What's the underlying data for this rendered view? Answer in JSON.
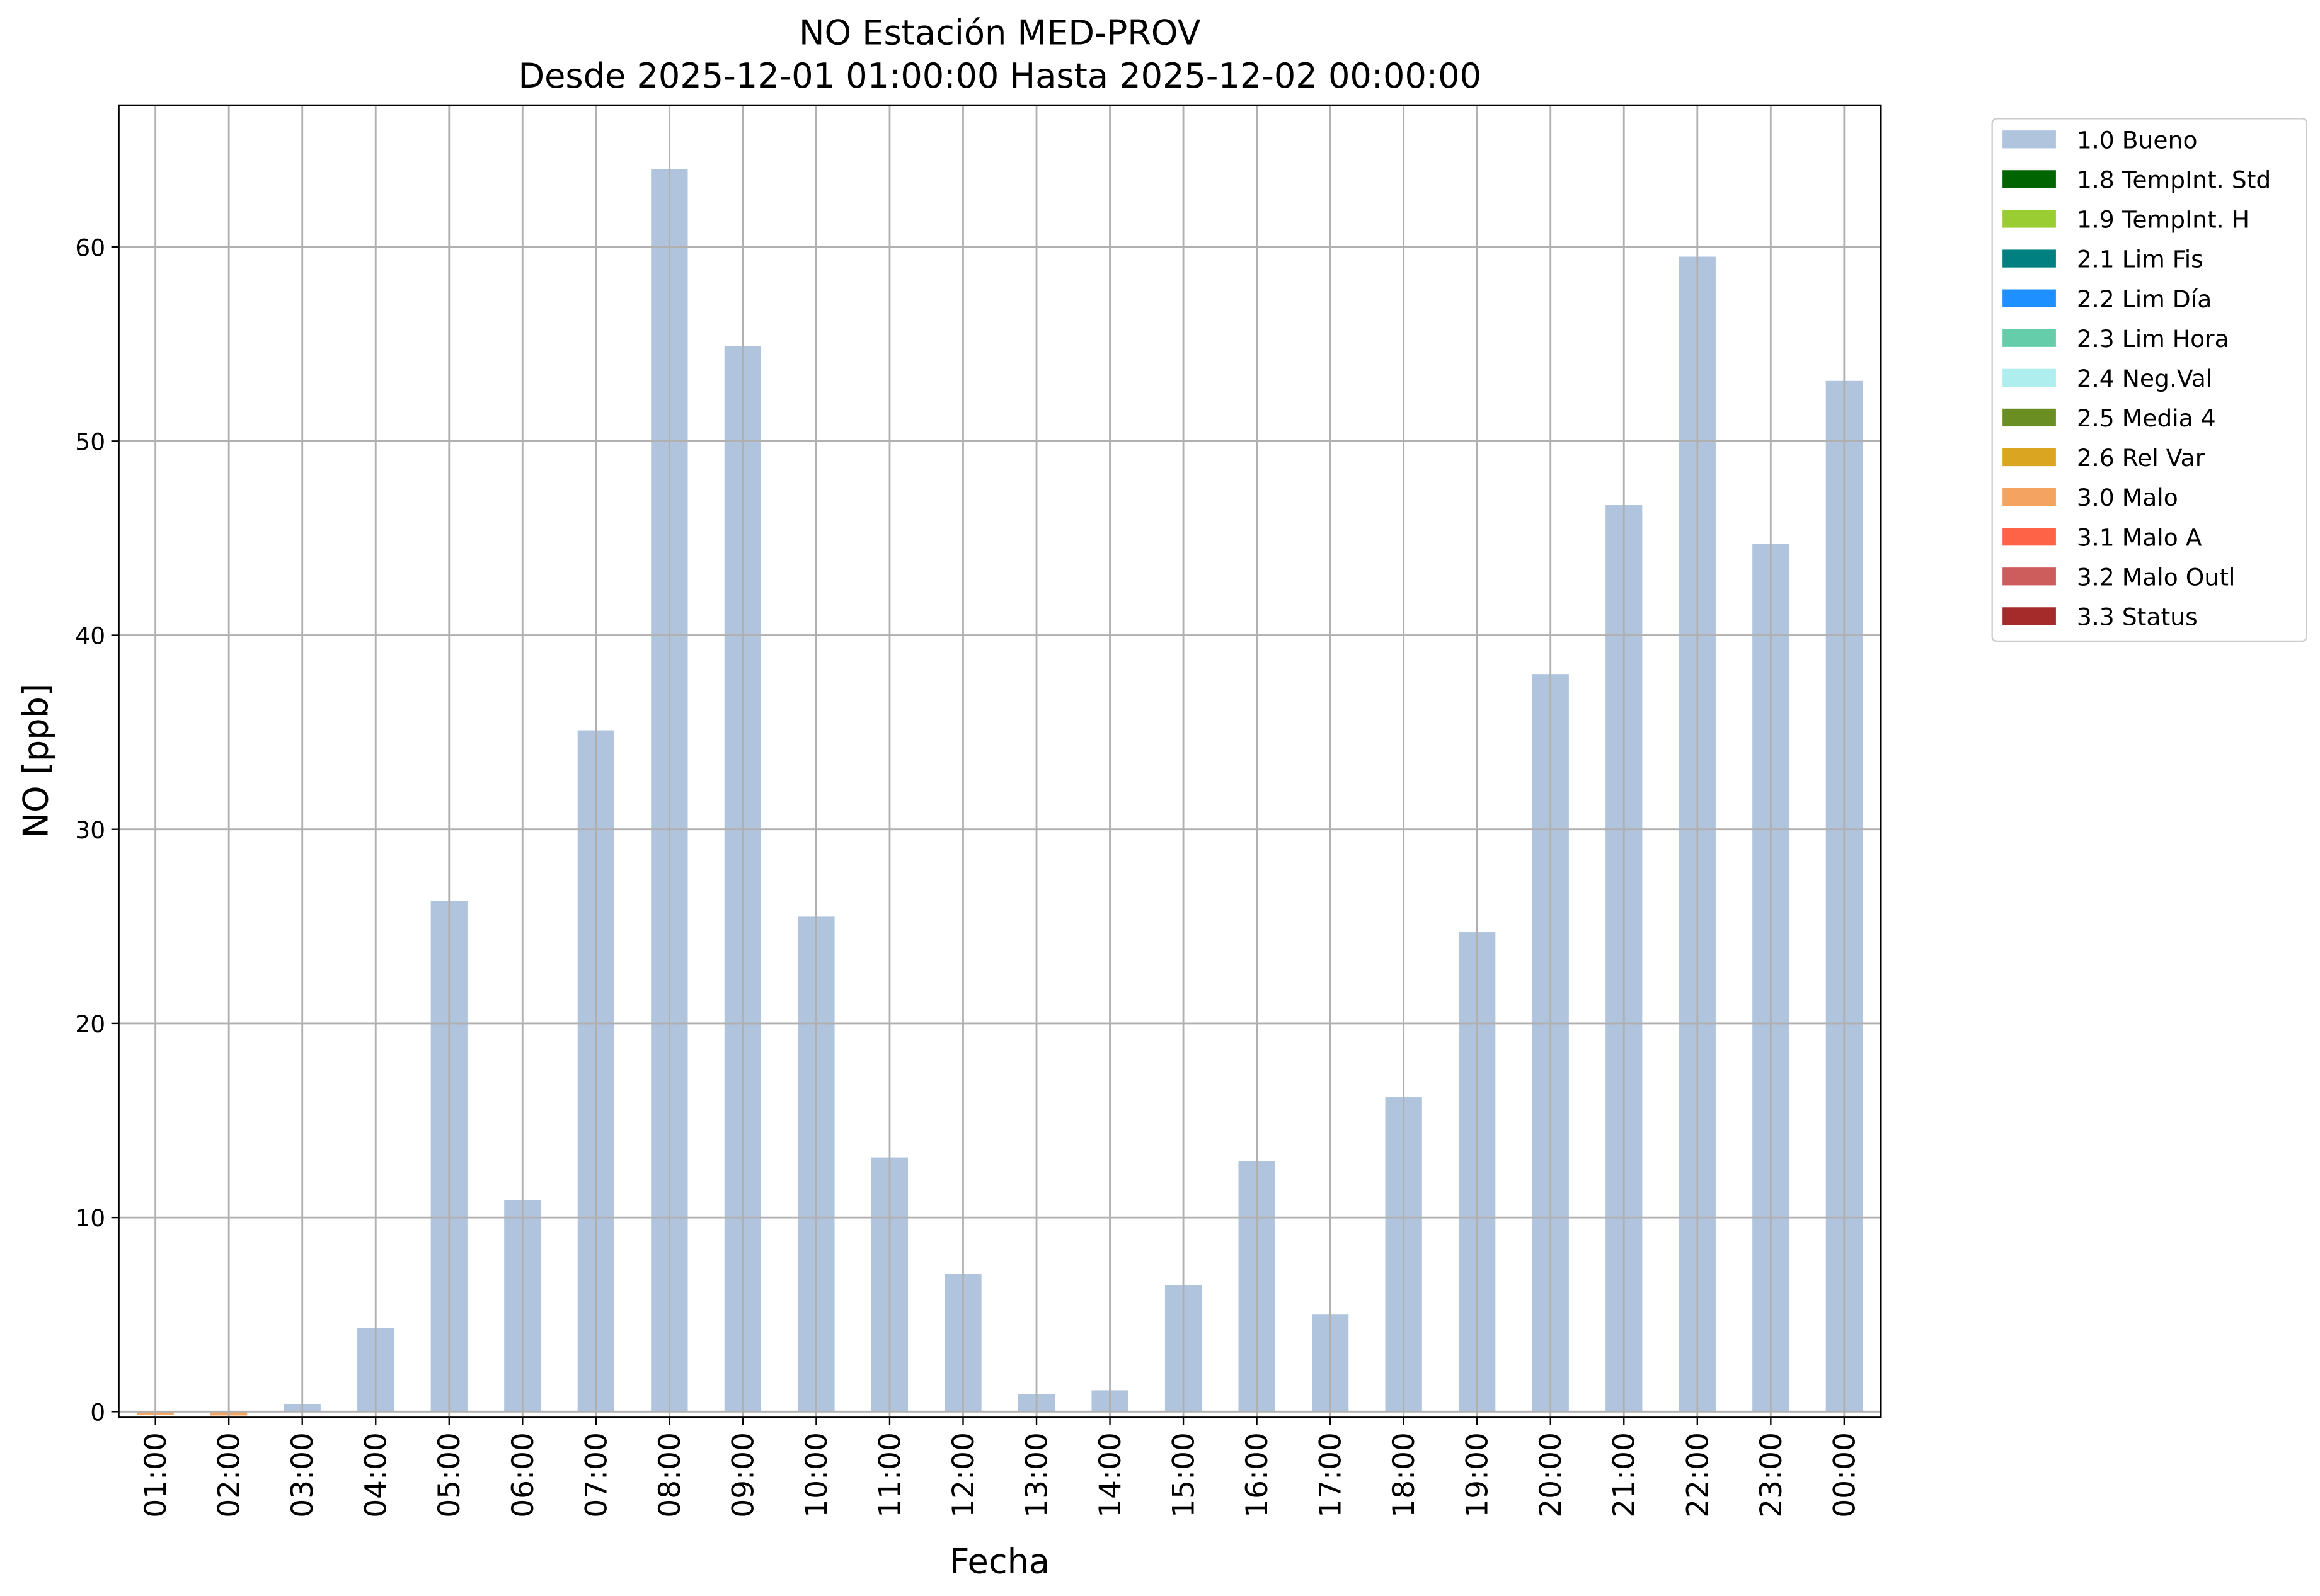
{
  "chart_data": {
    "type": "bar",
    "stacked": true,
    "title": "NO Estación MED-PROV",
    "subtitle": "Desde 2025-12-01 01:00:00 Hasta 2025-12-02 00:00:00",
    "x_label": "Fecha",
    "y_label": "NO [ppb]",
    "categories": [
      "01:00",
      "02:00",
      "03:00",
      "04:00",
      "05:00",
      "06:00",
      "07:00",
      "08:00",
      "09:00",
      "10:00",
      "11:00",
      "12:00",
      "13:00",
      "14:00",
      "15:00",
      "16:00",
      "17:00",
      "18:00",
      "19:00",
      "20:00",
      "21:00",
      "22:00",
      "23:00",
      "00:00"
    ],
    "series": [
      {
        "name": "1.0 Bueno",
        "color": "#b0c4de",
        "values": [
          null,
          null,
          0.4,
          4.3,
          26.3,
          10.9,
          35.1,
          64.0,
          54.9,
          25.5,
          13.1,
          7.1,
          0.9,
          1.1,
          6.5,
          12.9,
          5.0,
          16.2,
          24.7,
          38.0,
          46.7,
          59.5,
          44.7,
          53.1
        ]
      },
      {
        "name": "1.8 TempInt. Std",
        "color": "#006400",
        "values": [
          null,
          null,
          null,
          null,
          null,
          null,
          null,
          null,
          null,
          null,
          null,
          null,
          null,
          null,
          null,
          null,
          null,
          null,
          null,
          null,
          null,
          null,
          null,
          null
        ]
      },
      {
        "name": "1.9 TempInt. H",
        "color": "#9acd32",
        "values": [
          null,
          null,
          null,
          null,
          null,
          null,
          null,
          null,
          null,
          null,
          null,
          null,
          null,
          null,
          null,
          null,
          null,
          null,
          null,
          null,
          null,
          null,
          null,
          null
        ]
      },
      {
        "name": "2.1 Lim Fis",
        "color": "#008080",
        "values": [
          null,
          null,
          null,
          null,
          null,
          null,
          null,
          null,
          null,
          null,
          null,
          null,
          null,
          null,
          null,
          null,
          null,
          null,
          null,
          null,
          null,
          null,
          null,
          null
        ]
      },
      {
        "name": "2.2 Lim Día",
        "color": "#1e90ff",
        "values": [
          null,
          null,
          null,
          null,
          null,
          null,
          null,
          null,
          null,
          null,
          null,
          null,
          null,
          null,
          null,
          null,
          null,
          null,
          null,
          null,
          null,
          null,
          null,
          null
        ]
      },
      {
        "name": "2.3 Lim Hora",
        "color": "#66cdaa",
        "values": [
          null,
          null,
          null,
          null,
          null,
          null,
          null,
          null,
          null,
          null,
          null,
          null,
          null,
          null,
          null,
          null,
          null,
          null,
          null,
          null,
          null,
          null,
          null,
          null
        ]
      },
      {
        "name": "2.4 Neg.Val",
        "color": "#afeeee",
        "values": [
          null,
          null,
          null,
          null,
          null,
          null,
          null,
          null,
          null,
          null,
          null,
          null,
          null,
          null,
          null,
          null,
          null,
          null,
          null,
          null,
          null,
          null,
          null,
          null
        ]
      },
      {
        "name": "2.5 Media 4",
        "color": "#6b8e23",
        "values": [
          null,
          null,
          null,
          null,
          null,
          null,
          null,
          null,
          null,
          null,
          null,
          null,
          null,
          null,
          null,
          null,
          null,
          null,
          null,
          null,
          null,
          null,
          null,
          null
        ]
      },
      {
        "name": "2.6 Rel Var",
        "color": "#daa520",
        "values": [
          null,
          null,
          null,
          null,
          null,
          null,
          null,
          null,
          null,
          null,
          null,
          null,
          null,
          null,
          null,
          null,
          null,
          null,
          null,
          null,
          null,
          null,
          null,
          null
        ]
      },
      {
        "name": "3.0 Malo",
        "color": "#f4a460",
        "values": [
          -0.15,
          -0.2,
          null,
          null,
          null,
          null,
          null,
          null,
          null,
          null,
          null,
          null,
          null,
          null,
          null,
          null,
          null,
          null,
          null,
          null,
          null,
          null,
          null,
          null
        ]
      },
      {
        "name": "3.1 Malo A",
        "color": "#ff6347",
        "values": [
          null,
          null,
          null,
          null,
          null,
          null,
          null,
          null,
          null,
          null,
          null,
          null,
          null,
          null,
          null,
          null,
          null,
          null,
          null,
          null,
          null,
          null,
          null,
          null
        ]
      },
      {
        "name": "3.2 Malo Outl",
        "color": "#cd5c5c",
        "values": [
          null,
          null,
          null,
          null,
          null,
          null,
          null,
          null,
          null,
          null,
          null,
          null,
          null,
          null,
          null,
          null,
          null,
          null,
          null,
          null,
          null,
          null,
          null,
          null
        ]
      },
      {
        "name": "3.3 Status",
        "color": "#a52a2a",
        "values": [
          null,
          null,
          null,
          null,
          null,
          null,
          null,
          null,
          null,
          null,
          null,
          null,
          null,
          null,
          null,
          null,
          null,
          null,
          null,
          null,
          null,
          null,
          null,
          null
        ]
      }
    ],
    "ylim": [
      -0.3,
      67.3
    ],
    "yticks": [
      0,
      10,
      20,
      30,
      40,
      50,
      60
    ],
    "grid": true,
    "legend": "outside upper right"
  }
}
